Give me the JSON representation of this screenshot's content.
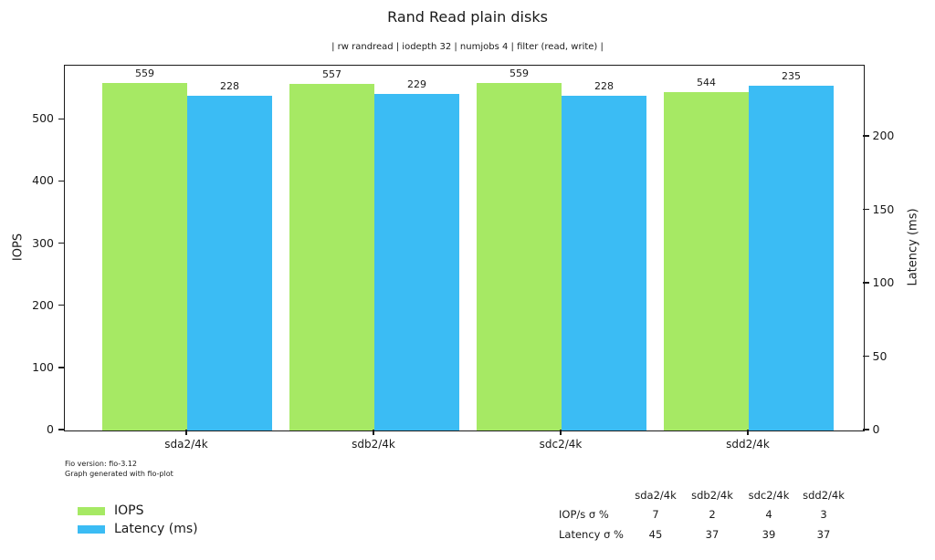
{
  "page": {
    "footer_line1": "Fio version: fio-3.12",
    "footer_line2": "Graph generated with fio-plot"
  },
  "chart_data": {
    "type": "bar",
    "title": "Rand Read plain disks",
    "subtitle": "| rw randread | iodepth 32 | numjobs 4 | filter (read, write) |",
    "categories": [
      "sda2/4k",
      "sdb2/4k",
      "sdc2/4k",
      "sdd2/4k"
    ],
    "series": [
      {
        "name": "IOPS",
        "axis": "left",
        "color": "#a6e964",
        "values": [
          559,
          557,
          559,
          544
        ]
      },
      {
        "name": "Latency (ms)",
        "axis": "right",
        "color": "#3bbcf4",
        "values": [
          228,
          229,
          228,
          235
        ]
      }
    ],
    "left_axis": {
      "label": "IOPS",
      "ticks": [
        0,
        100,
        200,
        300,
        400,
        500
      ],
      "ylim": [
        0,
        587
      ]
    },
    "right_axis": {
      "label": "Latency (ms)",
      "ticks": [
        0,
        50,
        100,
        150,
        200
      ],
      "ylim": [
        0,
        248.5
      ]
    },
    "legend": {
      "position": "bottom-left"
    },
    "grid": false,
    "value_labels": true,
    "sigma_table": {
      "columns": [
        "sda2/4k",
        "sdb2/4k",
        "sdc2/4k",
        "sdd2/4k"
      ],
      "rows": [
        {
          "label": "IOP/s σ %",
          "values": [
            7,
            2,
            4,
            3
          ]
        },
        {
          "label": "Latency σ %",
          "values": [
            45,
            37,
            39,
            37
          ]
        }
      ]
    }
  }
}
